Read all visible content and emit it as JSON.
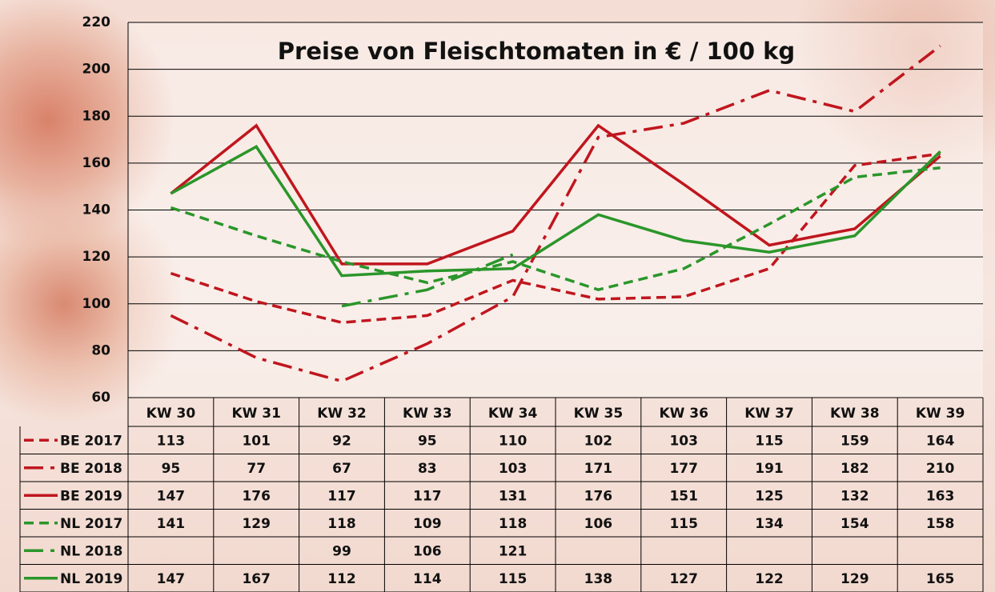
{
  "chart_data": {
    "type": "line",
    "title": "Preise von Fleischtomaten in € / 100 kg",
    "categories": [
      "KW 30",
      "KW 31",
      "KW 32",
      "KW 33",
      "KW 34",
      "KW 35",
      "KW 36",
      "KW 37",
      "KW 38",
      "KW 39"
    ],
    "ylim": [
      60,
      220
    ],
    "yticks": [
      60,
      80,
      100,
      120,
      140,
      160,
      180,
      200,
      220
    ],
    "grid": true,
    "series": [
      {
        "name": "BE 2017",
        "color": "#c0161e",
        "dash": "dashed",
        "values": [
          113,
          101,
          92,
          95,
          110,
          102,
          103,
          115,
          159,
          164
        ]
      },
      {
        "name": "BE 2018",
        "color": "#c0161e",
        "dash": "dashdot",
        "values": [
          95,
          77,
          67,
          83,
          103,
          171,
          177,
          191,
          182,
          210
        ]
      },
      {
        "name": "BE 2019",
        "color": "#c0161e",
        "dash": "solid",
        "values": [
          147,
          176,
          117,
          117,
          131,
          176,
          151,
          125,
          132,
          163
        ]
      },
      {
        "name": "NL 2017",
        "color": "#2a962a",
        "dash": "dashed",
        "values": [
          141,
          129,
          118,
          109,
          118,
          106,
          115,
          134,
          154,
          158
        ]
      },
      {
        "name": "NL 2018",
        "color": "#2a962a",
        "dash": "dashdot",
        "values": [
          null,
          null,
          99,
          106,
          121,
          null,
          null,
          null,
          null,
          null
        ]
      },
      {
        "name": "NL 2019",
        "color": "#2a962a",
        "dash": "solid",
        "values": [
          147,
          167,
          112,
          114,
          115,
          138,
          127,
          122,
          129,
          165
        ]
      }
    ]
  }
}
